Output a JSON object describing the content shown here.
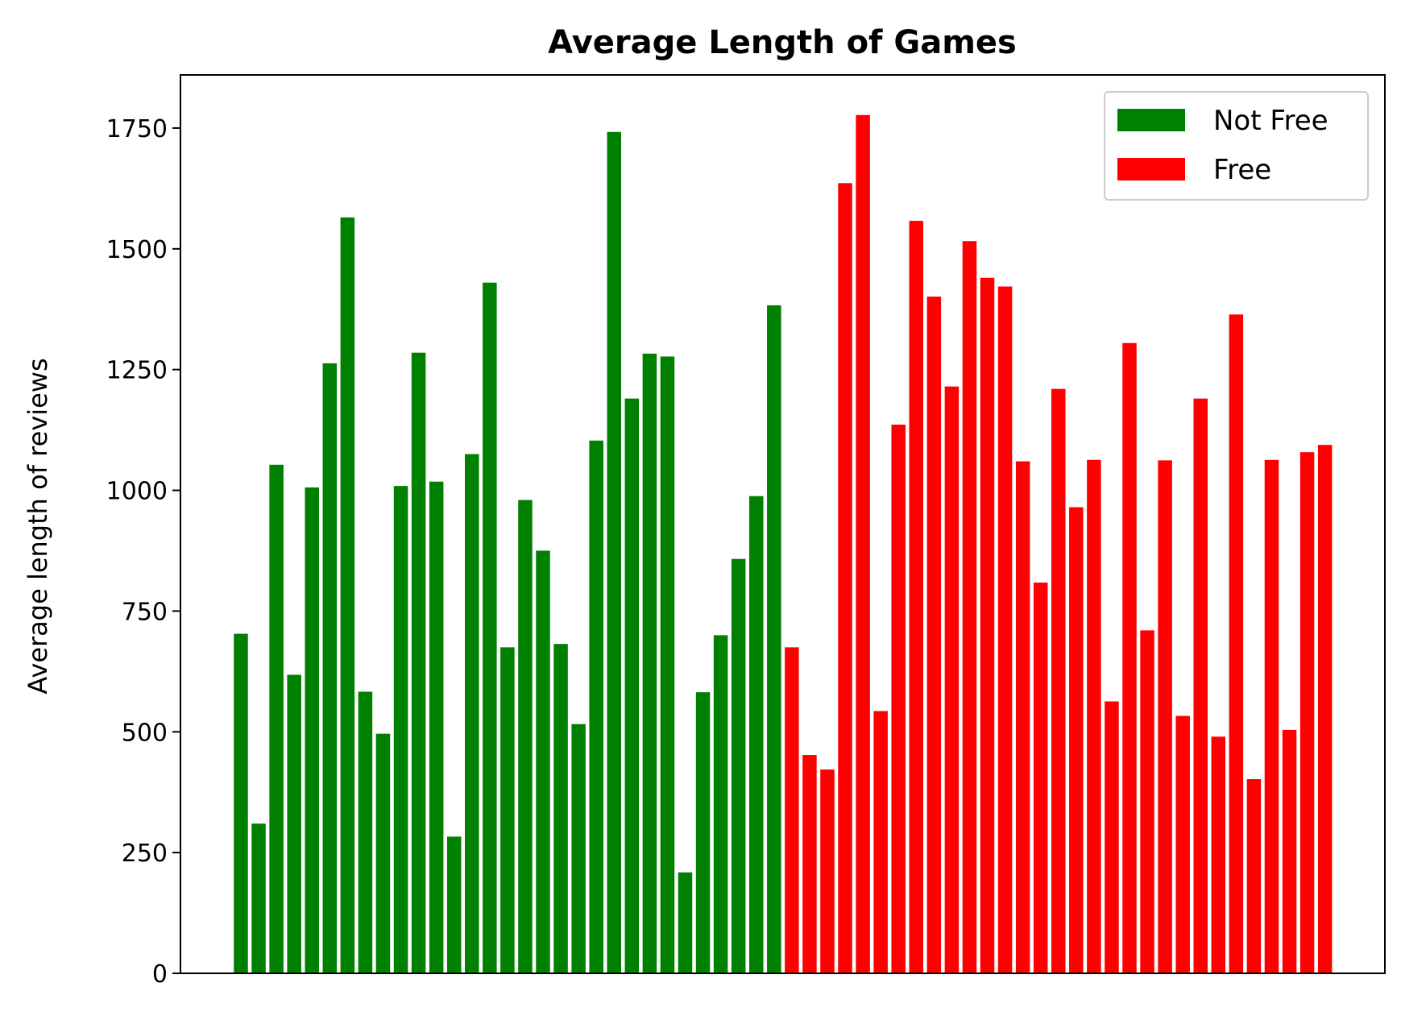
{
  "chart_data": {
    "type": "bar",
    "title": "Average Length of Games",
    "xlabel": "",
    "ylabel": "Average length of reviews",
    "ylim": [
      0,
      1860
    ],
    "yticks": [
      0,
      250,
      500,
      750,
      1000,
      1250,
      1500,
      1750
    ],
    "grid": false,
    "legend_position": "top-right",
    "series": [
      {
        "name": "Not Free",
        "color": "#008000",
        "values": [
          703,
          310,
          1053,
          618,
          1006,
          1263,
          1565,
          583,
          496,
          1009,
          1285,
          1018,
          283,
          1075,
          1430,
          675,
          980,
          875,
          682,
          516,
          1103,
          1742,
          1190,
          1283,
          1277,
          209,
          582,
          700,
          858,
          988,
          1383
        ]
      },
      {
        "name": "Free",
        "color": "#ff0000",
        "values": [
          675,
          452,
          422,
          1636,
          1777,
          543,
          1136,
          1558,
          1401,
          1215,
          1516,
          1440,
          1422,
          1060,
          809,
          1210,
          965,
          1063,
          563,
          1305,
          710,
          1062,
          533,
          1190,
          490,
          1364,
          402,
          1063,
          504,
          1079,
          1094
        ]
      }
    ]
  }
}
